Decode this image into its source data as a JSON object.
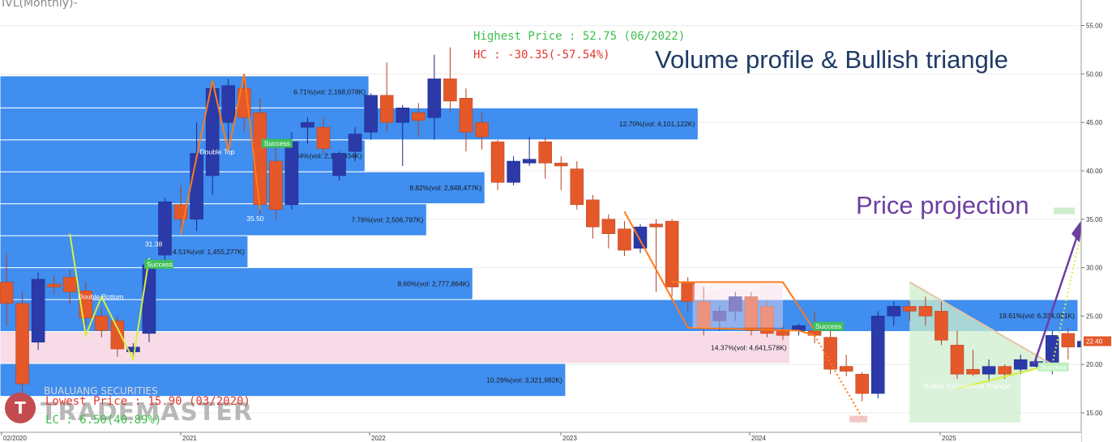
{
  "header": {
    "title": "IVL(Monthly)-"
  },
  "annotations": {
    "highest_price": "Highest Price : 52.75 (06/2022)",
    "hc": "HC : -30.35(-57.54%)",
    "lowest_price": "Lowest Price : 15.90 (03/2020)",
    "lc": "LC : 6.50(40.89%)",
    "volume_profile_title": "Volume profile & Bullish triangle",
    "price_projection_title": "Price projection",
    "double_bottom": "Double Bottom",
    "double_top": "Double Top",
    "bullish_symmetrical": "Bullish Symmetrical Triangle",
    "bullish_rectangle": "Bullish Rectangle",
    "success": "Success",
    "label_31_38": "31.38",
    "label_35_50": "35.50"
  },
  "logo": {
    "mark": "T",
    "brand": "TRADEMASTER",
    "sub": "BUALUANG SECURITIES"
  },
  "colors": {
    "bull": "#2b3aa8",
    "bear": "#e4582a",
    "profile_blue": "#3f8ef0",
    "profile_pink": "#f7dce8",
    "accent_orange": "#ff7a1a",
    "accent_yellow": "#d6f03c",
    "projection_purple": "#6b3fa0"
  },
  "chart_data": {
    "type": "candlestick",
    "period": "Monthly",
    "x_ticks": [
      "02/2020",
      "2021",
      "2022",
      "2023",
      "2024",
      "2025"
    ],
    "y_ticks": [
      15,
      20,
      25,
      30,
      35,
      40,
      45,
      50,
      55
    ],
    "y_tick_labels": [
      "15.00",
      "20.00",
      "25.00",
      "30.00",
      "35.00",
      "40.00",
      "45.00",
      "50.00",
      "55.00"
    ],
    "ylim": [
      14,
      56
    ],
    "current_price": "22.40",
    "candles": [
      {
        "o": 28.5,
        "h": 31.5,
        "c": 26.3,
        "l": 24.0
      },
      {
        "o": 26.3,
        "h": 27.5,
        "c": 18.0,
        "l": 15.9
      },
      {
        "o": 22.3,
        "h": 29.5,
        "c": 28.8,
        "l": 21.5
      },
      {
        "o": 28.3,
        "h": 29.2,
        "c": 28.0,
        "l": 27.2
      },
      {
        "o": 29.0,
        "h": 29.8,
        "c": 27.5,
        "l": 26.2
      },
      {
        "o": 27.6,
        "h": 28.5,
        "c": 24.8,
        "l": 24.0
      },
      {
        "o": 25.0,
        "h": 26.0,
        "c": 23.5,
        "l": 22.8
      },
      {
        "o": 24.5,
        "h": 25.0,
        "c": 21.6,
        "l": 20.8
      },
      {
        "o": 21.3,
        "h": 22.2,
        "c": 21.8,
        "l": 20.5
      },
      {
        "o": 23.2,
        "h": 30.5,
        "c": 30.3,
        "l": 22.3
      },
      {
        "o": 31.3,
        "h": 37.2,
        "c": 36.8,
        "l": 30.2
      },
      {
        "o": 36.5,
        "h": 38.5,
        "c": 35.0,
        "l": 34.2
      },
      {
        "o": 35.0,
        "h": 45.0,
        "c": 41.8,
        "l": 33.8
      },
      {
        "o": 39.5,
        "h": 49.0,
        "c": 48.5,
        "l": 37.5
      },
      {
        "o": 45.0,
        "h": 49.5,
        "c": 48.8,
        "l": 43.0
      },
      {
        "o": 48.5,
        "h": 50.0,
        "c": 45.5,
        "l": 44.0
      },
      {
        "o": 46.0,
        "h": 47.5,
        "c": 36.5,
        "l": 35.5
      },
      {
        "o": 41.0,
        "h": 42.5,
        "c": 36.0,
        "l": 35.0
      },
      {
        "o": 36.5,
        "h": 44.0,
        "c": 43.0,
        "l": 36.0
      },
      {
        "o": 44.5,
        "h": 45.5,
        "c": 45.0,
        "l": 42.8
      },
      {
        "o": 44.5,
        "h": 45.5,
        "c": 42.3,
        "l": 41.8
      },
      {
        "o": 39.5,
        "h": 42.0,
        "c": 41.8,
        "l": 39.0
      },
      {
        "o": 42.0,
        "h": 44.5,
        "c": 43.8,
        "l": 41.0
      },
      {
        "o": 44.0,
        "h": 48.0,
        "c": 47.8,
        "l": 43.2
      },
      {
        "o": 47.8,
        "h": 51.2,
        "c": 45.0,
        "l": 44.0
      },
      {
        "o": 45.0,
        "h": 46.8,
        "c": 46.5,
        "l": 40.5
      },
      {
        "o": 46.0,
        "h": 47.0,
        "c": 45.2,
        "l": 43.5
      },
      {
        "o": 45.5,
        "h": 52.0,
        "c": 49.5,
        "l": 43.2
      },
      {
        "o": 49.5,
        "h": 52.75,
        "c": 47.2,
        "l": 46.0
      },
      {
        "o": 47.5,
        "h": 48.5,
        "c": 44.0,
        "l": 42.0
      },
      {
        "o": 45.0,
        "h": 46.0,
        "c": 43.5,
        "l": 42.2
      },
      {
        "o": 43.0,
        "h": 43.2,
        "c": 38.8,
        "l": 38.0
      },
      {
        "o": 38.8,
        "h": 41.5,
        "c": 41.0,
        "l": 38.5
      },
      {
        "o": 40.8,
        "h": 43.5,
        "c": 41.2,
        "l": 40.5
      },
      {
        "o": 43.0,
        "h": 43.4,
        "c": 40.8,
        "l": 39.2
      },
      {
        "o": 40.8,
        "h": 41.5,
        "c": 40.5,
        "l": 38.0
      },
      {
        "o": 40.2,
        "h": 41.0,
        "c": 36.5,
        "l": 36.0
      },
      {
        "o": 37.0,
        "h": 37.5,
        "c": 34.2,
        "l": 33.0
      },
      {
        "o": 35.0,
        "h": 35.5,
        "c": 33.5,
        "l": 32.0
      },
      {
        "o": 34.0,
        "h": 34.8,
        "c": 31.8,
        "l": 31.2
      },
      {
        "o": 32.0,
        "h": 34.5,
        "c": 34.2,
        "l": 31.5
      },
      {
        "o": 34.5,
        "h": 35.0,
        "c": 34.2,
        "l": 27.5
      },
      {
        "o": 34.8,
        "h": 35.0,
        "c": 28.0,
        "l": 27.0
      },
      {
        "o": 28.5,
        "h": 29.0,
        "c": 26.5,
        "l": 25.5
      },
      {
        "o": 26.5,
        "h": 28.0,
        "c": 23.8,
        "l": 23.0
      },
      {
        "o": 24.5,
        "h": 26.0,
        "c": 25.5,
        "l": 23.5
      },
      {
        "o": 25.5,
        "h": 27.5,
        "c": 27.0,
        "l": 24.5
      },
      {
        "o": 27.0,
        "h": 27.5,
        "c": 23.5,
        "l": 23.0
      },
      {
        "o": 26.0,
        "h": 26.5,
        "c": 23.2,
        "l": 22.8
      },
      {
        "o": 23.5,
        "h": 24.0,
        "c": 23.0,
        "l": 22.5
      },
      {
        "o": 23.5,
        "h": 24.2,
        "c": 24.0,
        "l": 23.0
      },
      {
        "o": 23.5,
        "h": 25.5,
        "c": 23.0,
        "l": 22.2
      },
      {
        "o": 22.8,
        "h": 23.5,
        "c": 19.5,
        "l": 19.0
      },
      {
        "o": 19.8,
        "h": 21.0,
        "c": 19.3,
        "l": 18.8
      },
      {
        "o": 19.0,
        "h": 19.2,
        "c": 17.0,
        "l": 16.2
      },
      {
        "o": 17.0,
        "h": 25.5,
        "c": 25.0,
        "l": 16.5
      },
      {
        "o": 25.0,
        "h": 26.5,
        "c": 26.0,
        "l": 24.0
      },
      {
        "o": 26.0,
        "h": 26.5,
        "c": 25.5,
        "l": 24.5
      },
      {
        "o": 26.0,
        "h": 27.0,
        "c": 25.0,
        "l": 24.0
      },
      {
        "o": 25.5,
        "h": 26.5,
        "c": 22.5,
        "l": 22.0
      },
      {
        "o": 22.0,
        "h": 23.5,
        "c": 19.0,
        "l": 18.5
      },
      {
        "o": 19.5,
        "h": 21.5,
        "c": 19.0,
        "l": 18.8
      },
      {
        "o": 19.0,
        "h": 20.5,
        "c": 19.8,
        "l": 18.2
      },
      {
        "o": 19.8,
        "h": 20.0,
        "c": 19.0,
        "l": 18.5
      },
      {
        "o": 19.5,
        "h": 21.0,
        "c": 20.5,
        "l": 19.0
      },
      {
        "o": 19.8,
        "h": 20.5,
        "c": 20.3,
        "l": 19.5
      },
      {
        "o": 19.8,
        "h": 23.5,
        "c": 23.0,
        "l": 19.0
      },
      {
        "o": 23.2,
        "h": 23.8,
        "c": 21.8,
        "l": 20.5
      },
      {
        "o": 21.8,
        "h": 22.5,
        "c": 22.4,
        "l": 21.5
      }
    ],
    "volume_profile": [
      {
        "pct": "10.29%",
        "vol": "3,321,982K",
        "lo": 16.7,
        "hi": 20.1
      },
      {
        "pct": "14.37%",
        "vol": "4,641,578K",
        "lo": 20.1,
        "hi": 23.4,
        "highlight": true
      },
      {
        "pct": "19.61%",
        "vol": "6,334,021K",
        "lo": 23.4,
        "hi": 26.7
      },
      {
        "pct": "8.60%",
        "vol": "2,777,864K",
        "lo": 26.7,
        "hi": 30.0
      },
      {
        "pct": "4.51%",
        "vol": "1,455,277K",
        "lo": 30.0,
        "hi": 33.3
      },
      {
        "pct": "7.76%",
        "vol": "2,506,797K",
        "lo": 33.3,
        "hi": 36.6
      },
      {
        "pct": "8.82%",
        "vol": "2,848,477K",
        "lo": 36.6,
        "hi": 39.9
      },
      {
        "pct": "6.64%",
        "vol": "2,143,934K",
        "lo": 39.9,
        "hi": 43.2
      },
      {
        "pct": "12.70%",
        "vol": "4,101,122K",
        "lo": 43.2,
        "hi": 46.5
      },
      {
        "pct": "6.71%",
        "vol": "2,168,078K",
        "lo": 46.5,
        "hi": 49.8
      }
    ]
  }
}
